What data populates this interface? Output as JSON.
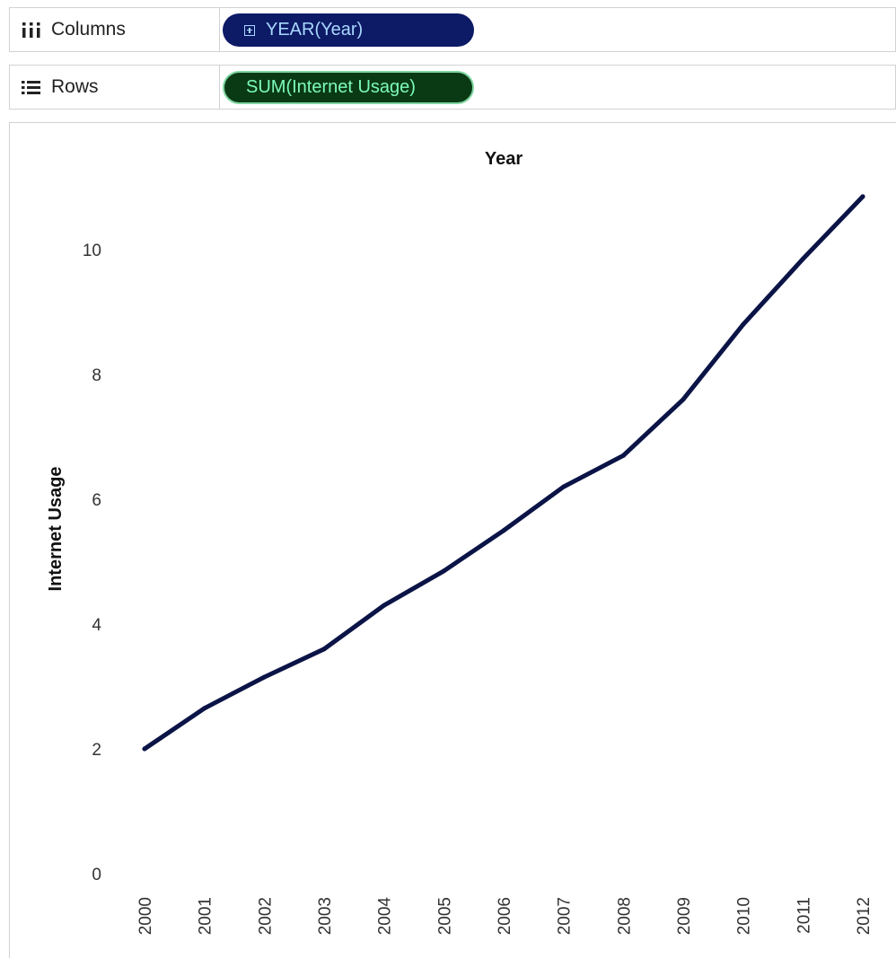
{
  "shelves": {
    "columns": {
      "label": "Columns",
      "icon": "columns-icon",
      "pill": "YEAR(Year)",
      "pill_icon": "expand-plus-icon",
      "pill_color": "#0d1a66"
    },
    "rows": {
      "label": "Rows",
      "icon": "rows-list-icon",
      "pill": "SUM(Internet Usage)",
      "pill_color": "#0a3a14"
    }
  },
  "chart_data": {
    "type": "line",
    "x_title": "Year",
    "y_title": "Internet Usage",
    "x": [
      "2000",
      "2001",
      "2002",
      "2003",
      "2004",
      "2005",
      "2006",
      "2007",
      "2008",
      "2009",
      "2010",
      "2011",
      "2012"
    ],
    "series": [
      {
        "values": [
          2.0,
          2.65,
          3.15,
          3.6,
          4.3,
          4.85,
          5.5,
          6.2,
          6.7,
          7.6,
          8.8,
          9.85,
          10.85
        ],
        "color": "#0b1446"
      }
    ],
    "y_ticks": [
      "0",
      "2",
      "4",
      "6",
      "8",
      "10"
    ],
    "ylim": [
      0,
      11
    ],
    "x_axis_title_position": "top",
    "x_tick_orientation": "vertical",
    "grid": false,
    "legend": "none"
  }
}
